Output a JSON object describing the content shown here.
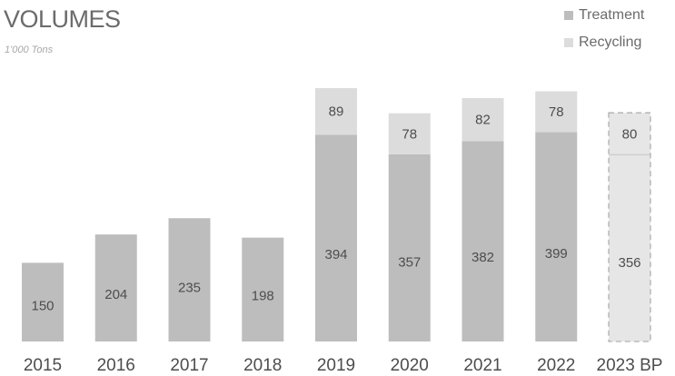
{
  "header": {
    "title": "VOLUMES",
    "subtitle": "1'000 Tons"
  },
  "legend": [
    {
      "label": "Treatment",
      "color": "#bdbdbd"
    },
    {
      "label": "Recycling",
      "color": "#dcdcdc"
    }
  ],
  "chart_data": {
    "type": "bar",
    "stacked": true,
    "title": "VOLUMES",
    "subtitle": "1'000 Tons",
    "categories": [
      "2015",
      "2016",
      "2017",
      "2018",
      "2019",
      "2020",
      "2021",
      "2022",
      "2023 BP"
    ],
    "series": [
      {
        "name": "Treatment",
        "values": [
          150,
          204,
          235,
          198,
          394,
          357,
          382,
          399,
          356
        ],
        "color": "#bdbdbd"
      },
      {
        "name": "Recycling",
        "values": [
          null,
          null,
          null,
          null,
          89,
          78,
          82,
          78,
          80
        ],
        "color": "#dcdcdc"
      }
    ],
    "budget_category": "2023 BP",
    "budget_style": {
      "fill": "#e6e6e6",
      "stroke": "#b0b0b0",
      "dashed": true
    },
    "ylim": [
      0,
      490
    ],
    "grid": false,
    "legend_position": "top-right"
  }
}
